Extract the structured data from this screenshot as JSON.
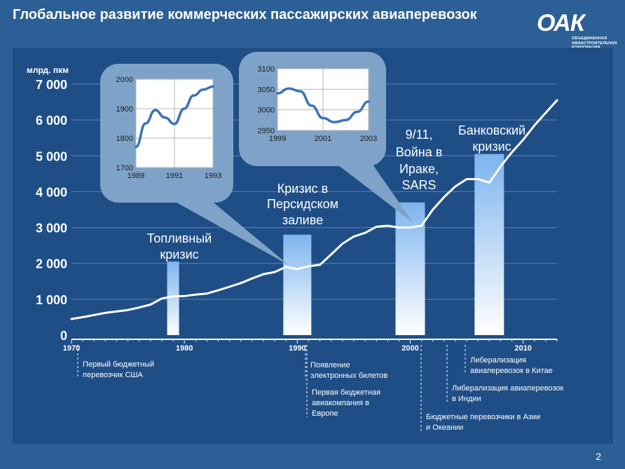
{
  "title": "Глобальное развитие коммерческих пассажирских авиаперевозок",
  "logo": {
    "mark": "ОАК",
    "subtitle": [
      "ОБЪЕДИНЕННАЯ",
      "АВИАСТРОИТЕЛЬНАЯ",
      "КОРПОРАЦИЯ"
    ]
  },
  "page_number": "2",
  "colors": {
    "background": "#2c5f96",
    "panel": "#1f4e86",
    "callout": "#7fa3c8",
    "inset_line": "#3a72b6",
    "bar_top": "#7db4ee",
    "bar_bottom": "#ffffff"
  },
  "chart_data": [
    {
      "type": "line",
      "ylabel": "млрд. пкм",
      "xlim": [
        1970,
        2013
      ],
      "ylim": [
        0,
        7000
      ],
      "y_ticks": [
        "0",
        "1 000",
        "2 000",
        "3 000",
        "4 000",
        "5 000",
        "6 000",
        "7 000"
      ],
      "x_ticks": [
        "1970",
        "1980",
        "1990",
        "2000",
        "2010"
      ],
      "grid": true,
      "series": [
        {
          "x": [
            1970,
            1971,
            1972,
            1973,
            1974,
            1975,
            1976,
            1977,
            1978,
            1979,
            1980,
            1981,
            1982,
            1983,
            1984,
            1985,
            1986,
            1987,
            1988,
            1989,
            1990,
            1991,
            1992,
            1993,
            1994,
            1995,
            1996,
            1997,
            1998,
            1999,
            2000,
            2001,
            2002,
            2003,
            2004,
            2005,
            2006,
            2007,
            2008,
            2009,
            2010,
            2011,
            2012,
            2013
          ],
          "y": [
            450,
            500,
            560,
            620,
            660,
            700,
            770,
            850,
            1020,
            1080,
            1090,
            1130,
            1160,
            1250,
            1350,
            1450,
            1580,
            1700,
            1760,
            1900,
            1840,
            1920,
            1960,
            2250,
            2550,
            2750,
            2850,
            3020,
            3050,
            3000,
            3000,
            3050,
            3500,
            3850,
            4150,
            4350,
            4350,
            4250,
            4700,
            5100,
            5450,
            5850,
            6200,
            6550
          ]
        }
      ],
      "events": [
        {
          "label": "Топливный кризис",
          "x": 1979,
          "value": 2050
        },
        {
          "label": "Кризис в Персидском заливе",
          "x": 1990,
          "value": 2800
        },
        {
          "label": "9/11, Война в Ираке, SARS",
          "x": 2000,
          "value": 3700
        },
        {
          "label": "Банковский кризис",
          "x": 2007,
          "value": 5050
        }
      ],
      "milestones": [
        {
          "x": 1970,
          "text": [
            "Первый бюджетный",
            "перевозчик США"
          ]
        },
        {
          "x": 1990,
          "text": [
            "Появление",
            "электронных билетов"
          ]
        },
        {
          "x": 1991,
          "text": [
            "Первая бюджетная",
            "авиакомпания в",
            "Европе"
          ]
        },
        {
          "x": 2001,
          "text": [
            "Бюджетные перевозчики в Азии",
            "и Океании"
          ]
        },
        {
          "x": 2003,
          "text": [
            "Либерализация авиаперевозок",
            "в Индии"
          ]
        },
        {
          "x": 2004,
          "text": [
            "Либерализация",
            "авиаперевозок в Китае"
          ]
        }
      ]
    },
    {
      "type": "line",
      "xlim": [
        1989,
        1993
      ],
      "ylim": [
        1700,
        2000
      ],
      "x_ticks": [
        "1989",
        "1991",
        "1993"
      ],
      "y_ticks": [
        "1700",
        "1800",
        "1900",
        "2000"
      ],
      "grid": true,
      "series": [
        {
          "x": [
            1989,
            1989.5,
            1990,
            1990.5,
            1991,
            1991.5,
            1992,
            1992.5,
            1993
          ],
          "y": [
            1770,
            1850,
            1895,
            1870,
            1848,
            1900,
            1945,
            1965,
            1975
          ]
        }
      ]
    },
    {
      "type": "line",
      "xlim": [
        1999,
        2003
      ],
      "ylim": [
        2950,
        3100
      ],
      "x_ticks": [
        "1999",
        "2001",
        "2003"
      ],
      "y_ticks": [
        "2950",
        "3000",
        "3050",
        "3100"
      ],
      "grid": true,
      "series": [
        {
          "x": [
            1999,
            1999.5,
            2000,
            2000.5,
            2001,
            2001.5,
            2002,
            2002.5,
            2003
          ],
          "y": [
            3040,
            3052,
            3045,
            3010,
            2980,
            2970,
            2975,
            2995,
            3020
          ]
        }
      ]
    }
  ]
}
